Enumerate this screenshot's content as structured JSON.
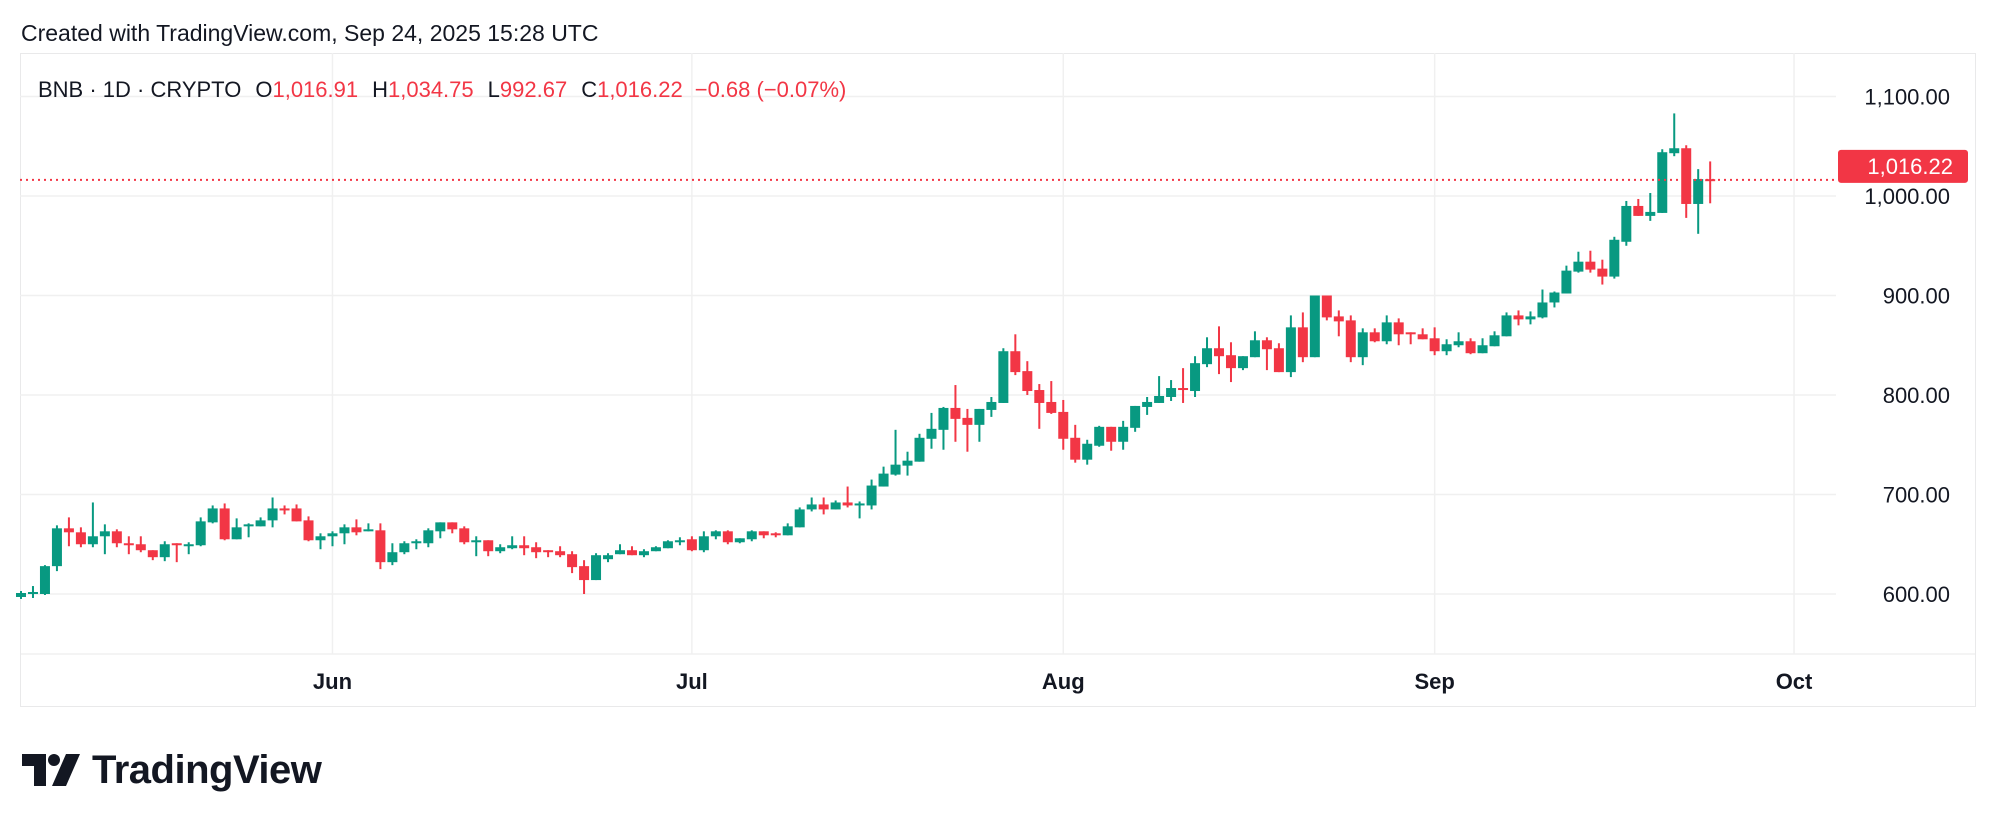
{
  "header": {
    "created": "Created with TradingView.com, Sep 24, 2025 15:28 UTC"
  },
  "legend": {
    "symbol": "BNB · 1D · CRYPTO",
    "open_label": "O",
    "open": "1,016.91",
    "high_label": "H",
    "high": "1,034.75",
    "low_label": "L",
    "low": "992.67",
    "close_label": "C",
    "close": "1,016.22",
    "change": "−0.68 (−0.07%)"
  },
  "logo": {
    "text": "TradingView"
  },
  "colors": {
    "up": "#089981",
    "down": "#f23645",
    "grid": "#f0f0f0",
    "text": "#131722"
  },
  "chart_data": {
    "type": "candlestick",
    "interval": "1D",
    "ylim": [
      540,
      1130
    ],
    "yticks": [
      600,
      700,
      800,
      900,
      1000,
      1100
    ],
    "ytick_labels": [
      "600.00",
      "700.00",
      "800.00",
      "900.00",
      "1,000.00",
      "1,100.00"
    ],
    "xticks": [
      {
        "date": "2025-06-01",
        "label": "Jun"
      },
      {
        "date": "2025-07-01",
        "label": "Jul"
      },
      {
        "date": "2025-08-01",
        "label": "Aug"
      },
      {
        "date": "2025-09-01",
        "label": "Sep"
      },
      {
        "date": "2025-10-01",
        "label": "Oct"
      }
    ],
    "xlim": [
      "2025-05-06",
      "2025-10-05"
    ],
    "grid": true,
    "last_price": 1016.22,
    "last_price_label": "1,016.22",
    "columns": [
      "date",
      "open",
      "high",
      "low",
      "close"
    ],
    "candles": [
      [
        "2025-05-06",
        597,
        603,
        595,
        601
      ],
      [
        "2025-05-07",
        600,
        608,
        596,
        602
      ],
      [
        "2025-05-08",
        600,
        629,
        599,
        628
      ],
      [
        "2025-05-09",
        628,
        669,
        623,
        666
      ],
      [
        "2025-05-10",
        666,
        677,
        648,
        662
      ],
      [
        "2025-05-11",
        662,
        667,
        647,
        650
      ],
      [
        "2025-05-12",
        650,
        692,
        647,
        658
      ],
      [
        "2025-05-13",
        658,
        670,
        640,
        663
      ],
      [
        "2025-05-14",
        663,
        665,
        647,
        651
      ],
      [
        "2025-05-15",
        651,
        658,
        640,
        650
      ],
      [
        "2025-05-16",
        650,
        658,
        642,
        644
      ],
      [
        "2025-05-17",
        644,
        644,
        634,
        637
      ],
      [
        "2025-05-18",
        637,
        653,
        633,
        650
      ],
      [
        "2025-05-19",
        651,
        651,
        632,
        650
      ],
      [
        "2025-05-20",
        648,
        652,
        640,
        650
      ],
      [
        "2025-05-21",
        649,
        677,
        648,
        673
      ],
      [
        "2025-05-22",
        672,
        689,
        671,
        686
      ],
      [
        "2025-05-23",
        686,
        691,
        654,
        655
      ],
      [
        "2025-05-24",
        655,
        676,
        655,
        667
      ],
      [
        "2025-05-25",
        668,
        671,
        657,
        670
      ],
      [
        "2025-05-26",
        668,
        677,
        668,
        674
      ],
      [
        "2025-05-27",
        674,
        697,
        667,
        686
      ],
      [
        "2025-05-28",
        686,
        689,
        680,
        685
      ],
      [
        "2025-05-29",
        686,
        690,
        673,
        673
      ],
      [
        "2025-05-30",
        674,
        678,
        653,
        654
      ],
      [
        "2025-05-31",
        654,
        661,
        645,
        658
      ],
      [
        "2025-06-01",
        658,
        663,
        648,
        661
      ],
      [
        "2025-06-02",
        661,
        670,
        650,
        667
      ],
      [
        "2025-06-03",
        667,
        675,
        659,
        662
      ],
      [
        "2025-06-04",
        663,
        671,
        663,
        665
      ],
      [
        "2025-06-05",
        664,
        671,
        625,
        632
      ],
      [
        "2025-06-06",
        632,
        651,
        629,
        642
      ],
      [
        "2025-06-07",
        642,
        653,
        640,
        651
      ],
      [
        "2025-06-08",
        651,
        655,
        645,
        653
      ],
      [
        "2025-06-09",
        651,
        666,
        647,
        664
      ],
      [
        "2025-06-10",
        663,
        672,
        656,
        672
      ],
      [
        "2025-06-11",
        672,
        672,
        661,
        665
      ],
      [
        "2025-06-12",
        666,
        668,
        650,
        652
      ],
      [
        "2025-06-13",
        652,
        658,
        638,
        654
      ],
      [
        "2025-06-14",
        654,
        654,
        638,
        643
      ],
      [
        "2025-06-15",
        643,
        650,
        641,
        647
      ],
      [
        "2025-06-16",
        646,
        658,
        645,
        649
      ],
      [
        "2025-06-17",
        649,
        658,
        639,
        646
      ],
      [
        "2025-06-18",
        647,
        652,
        636,
        642
      ],
      [
        "2025-06-19",
        644,
        644,
        637,
        642
      ],
      [
        "2025-06-20",
        643,
        648,
        637,
        639
      ],
      [
        "2025-06-21",
        640,
        643,
        621,
        627
      ],
      [
        "2025-06-22",
        628,
        634,
        600,
        614
      ],
      [
        "2025-06-23",
        614,
        641,
        614,
        639
      ],
      [
        "2025-06-24",
        635,
        641,
        632,
        639
      ],
      [
        "2025-06-25",
        640,
        650,
        640,
        644
      ],
      [
        "2025-06-26",
        644,
        648,
        639,
        639
      ],
      [
        "2025-06-27",
        639,
        645,
        637,
        643
      ],
      [
        "2025-06-28",
        643,
        648,
        643,
        647
      ],
      [
        "2025-06-29",
        646,
        654,
        646,
        653
      ],
      [
        "2025-06-30",
        652,
        657,
        649,
        654
      ],
      [
        "2025-07-01",
        655,
        658,
        643,
        644
      ],
      [
        "2025-07-02",
        644,
        663,
        642,
        658
      ],
      [
        "2025-07-03",
        658,
        664,
        655,
        663
      ],
      [
        "2025-07-04",
        663,
        664,
        650,
        652
      ],
      [
        "2025-07-05",
        652,
        656,
        651,
        656
      ],
      [
        "2025-07-06",
        655,
        664,
        653,
        663
      ],
      [
        "2025-07-07",
        663,
        663,
        656,
        659
      ],
      [
        "2025-07-08",
        661,
        662,
        657,
        659
      ],
      [
        "2025-07-09",
        659,
        671,
        659,
        668
      ],
      [
        "2025-07-10",
        667,
        687,
        667,
        685
      ],
      [
        "2025-07-11",
        685,
        697,
        683,
        690
      ],
      [
        "2025-07-12",
        690,
        697,
        680,
        685
      ],
      [
        "2025-07-13",
        685,
        694,
        685,
        692
      ],
      [
        "2025-07-14",
        692,
        708,
        687,
        689
      ],
      [
        "2025-07-15",
        689,
        693,
        676,
        691
      ],
      [
        "2025-07-16",
        689,
        715,
        685,
        709
      ],
      [
        "2025-07-17",
        708,
        728,
        708,
        721
      ],
      [
        "2025-07-18",
        720,
        765,
        719,
        730
      ],
      [
        "2025-07-19",
        729,
        743,
        719,
        734
      ],
      [
        "2025-07-20",
        733,
        761,
        733,
        757
      ],
      [
        "2025-07-21",
        756,
        782,
        746,
        766
      ],
      [
        "2025-07-22",
        765,
        788,
        745,
        787
      ],
      [
        "2025-07-23",
        787,
        810,
        753,
        776
      ],
      [
        "2025-07-24",
        777,
        786,
        743,
        770
      ],
      [
        "2025-07-25",
        770,
        786,
        753,
        786
      ],
      [
        "2025-07-26",
        785,
        798,
        778,
        793
      ],
      [
        "2025-07-27",
        792,
        847,
        792,
        844
      ],
      [
        "2025-07-28",
        844,
        861,
        820,
        823
      ],
      [
        "2025-07-29",
        824,
        834,
        800,
        804
      ],
      [
        "2025-07-30",
        805,
        811,
        766,
        792
      ],
      [
        "2025-07-31",
        793,
        814,
        781,
        782
      ],
      [
        "2025-08-01",
        783,
        795,
        745,
        756
      ],
      [
        "2025-08-02",
        757,
        770,
        732,
        735
      ],
      [
        "2025-08-03",
        735,
        755,
        730,
        751
      ],
      [
        "2025-08-04",
        749,
        769,
        748,
        768
      ],
      [
        "2025-08-05",
        768,
        768,
        744,
        753
      ],
      [
        "2025-08-06",
        753,
        774,
        745,
        768
      ],
      [
        "2025-08-07",
        767,
        789,
        763,
        789
      ],
      [
        "2025-08-08",
        788,
        798,
        780,
        793
      ],
      [
        "2025-08-09",
        792,
        819,
        792,
        799
      ],
      [
        "2025-08-10",
        798,
        815,
        794,
        807
      ],
      [
        "2025-08-11",
        807,
        827,
        792,
        805
      ],
      [
        "2025-08-12",
        804,
        839,
        798,
        832
      ],
      [
        "2025-08-13",
        831,
        858,
        828,
        847
      ],
      [
        "2025-08-14",
        847,
        869,
        821,
        839
      ],
      [
        "2025-08-15",
        840,
        853,
        813,
        827
      ],
      [
        "2025-08-16",
        827,
        839,
        825,
        839
      ],
      [
        "2025-08-17",
        838,
        864,
        838,
        855
      ],
      [
        "2025-08-18",
        855,
        858,
        825,
        846
      ],
      [
        "2025-08-19",
        847,
        852,
        823,
        823
      ],
      [
        "2025-08-20",
        823,
        880,
        818,
        868
      ],
      [
        "2025-08-21",
        868,
        883,
        833,
        838
      ],
      [
        "2025-08-22",
        838,
        900,
        838,
        900
      ],
      [
        "2025-08-23",
        900,
        900,
        875,
        878
      ],
      [
        "2025-08-24",
        879,
        885,
        859,
        874
      ],
      [
        "2025-08-25",
        875,
        880,
        833,
        838
      ],
      [
        "2025-08-26",
        838,
        867,
        830,
        863
      ],
      [
        "2025-08-27",
        863,
        867,
        853,
        854
      ],
      [
        "2025-08-28",
        854,
        880,
        851,
        873
      ],
      [
        "2025-08-29",
        873,
        877,
        850,
        861
      ],
      [
        "2025-08-30",
        863,
        863,
        851,
        861
      ],
      [
        "2025-08-31",
        861,
        867,
        856,
        856
      ],
      [
        "2025-09-01",
        857,
        868,
        840,
        844
      ],
      [
        "2025-09-02",
        844,
        856,
        840,
        851
      ],
      [
        "2025-09-03",
        850,
        863,
        848,
        854
      ],
      [
        "2025-09-04",
        854,
        857,
        841,
        842
      ],
      [
        "2025-09-05",
        842,
        857,
        842,
        850
      ],
      [
        "2025-09-06",
        849,
        864,
        849,
        860
      ],
      [
        "2025-09-07",
        859,
        883,
        859,
        880
      ],
      [
        "2025-09-08",
        880,
        885,
        870,
        876
      ],
      [
        "2025-09-09",
        876,
        884,
        871,
        879
      ],
      [
        "2025-09-10",
        878,
        906,
        877,
        893
      ],
      [
        "2025-09-11",
        893,
        904,
        888,
        903
      ],
      [
        "2025-09-12",
        902,
        930,
        902,
        925
      ],
      [
        "2025-09-13",
        924,
        944,
        923,
        934
      ],
      [
        "2025-09-14",
        934,
        945,
        923,
        926
      ],
      [
        "2025-09-15",
        927,
        936,
        911,
        919
      ],
      [
        "2025-09-16",
        919,
        959,
        917,
        956
      ],
      [
        "2025-09-17",
        954,
        995,
        950,
        990
      ],
      [
        "2025-09-18",
        990,
        997,
        980,
        980
      ],
      [
        "2025-09-19",
        980,
        1003,
        975,
        984
      ],
      [
        "2025-09-20",
        983,
        1047,
        983,
        1044
      ],
      [
        "2025-09-21",
        1043,
        1083,
        1040,
        1048
      ],
      [
        "2025-09-22",
        1048,
        1051,
        978,
        992
      ],
      [
        "2025-09-23",
        992,
        1027,
        962,
        1017
      ],
      [
        "2025-09-24",
        1016.91,
        1034.75,
        992.67,
        1016.22
      ]
    ]
  }
}
